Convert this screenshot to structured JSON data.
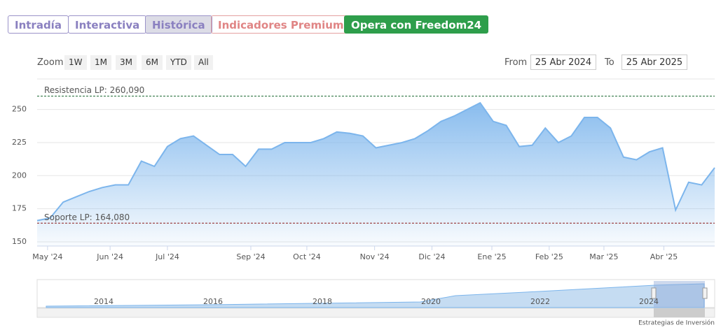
{
  "tabs": [
    "Intradía",
    "Interactiva",
    "Histórica",
    "Indicadores Premium",
    "Opera con Freedom24"
  ],
  "zoom": {
    "label": "Zoom",
    "buttons": [
      "1W",
      "1M",
      "3M",
      "6M",
      "YTD",
      "All"
    ]
  },
  "range": {
    "from_label": "From",
    "from": "25 Abr 2024",
    "to_label": "To",
    "to": "25 Abr 2025"
  },
  "navigator": {
    "years": [
      "2014",
      "2016",
      "2018",
      "2020",
      "2022",
      "2024"
    ]
  },
  "footer": "Estrategias de Inversión",
  "chart_data": {
    "type": "area",
    "color": "#7cb5ec",
    "x": [
      0,
      1,
      2,
      3,
      4,
      5,
      6,
      7,
      8,
      9,
      10,
      11,
      12,
      13,
      14,
      15,
      16,
      17,
      18,
      19,
      20,
      21,
      22,
      23,
      24,
      25,
      26,
      27,
      28,
      29,
      30,
      31,
      32,
      33,
      34,
      35,
      36,
      37,
      38,
      39,
      40,
      41,
      42,
      43,
      44,
      45,
      46,
      47,
      48,
      49,
      50,
      51,
      52
    ],
    "values": [
      166,
      168,
      180,
      184,
      188,
      191,
      193,
      193,
      211,
      207,
      222,
      228,
      230,
      223,
      216,
      216,
      207,
      220,
      220,
      225,
      225,
      225,
      228,
      233,
      232,
      230,
      221,
      223,
      225,
      228,
      234,
      241,
      245,
      250,
      255,
      241,
      238,
      222,
      223,
      236,
      225,
      230,
      244,
      244,
      236,
      214,
      212,
      218,
      221,
      174,
      195,
      193,
      206
    ],
    "xlim": [
      0,
      52
    ],
    "xticks": [
      {
        "value": 0.8,
        "label": "May '24"
      },
      {
        "value": 5.6,
        "label": "Jun '24"
      },
      {
        "value": 10,
        "label": "Jul '24"
      },
      {
        "value": 16.4,
        "label": "Sep '24"
      },
      {
        "value": 20.7,
        "label": "Oct '24"
      },
      {
        "value": 25.9,
        "label": "Nov '24"
      },
      {
        "value": 30.3,
        "label": "Dic '24"
      },
      {
        "value": 34.9,
        "label": "Ene '25"
      },
      {
        "value": 39.3,
        "label": "Feb '25"
      },
      {
        "value": 43.5,
        "label": "Mar '25"
      },
      {
        "value": 48.1,
        "label": "Abr '25"
      }
    ],
    "ylim": [
      146.8,
      272
    ],
    "yticks": [
      150,
      175,
      200,
      225,
      250
    ],
    "grid": true,
    "annotations": [
      {
        "label": "Resistencia LP: 260,090",
        "value": 260.09,
        "color": "#1e6b35"
      },
      {
        "label": "Soporte LP: 164,080",
        "value": 164.08,
        "color": "#8b1a1a"
      }
    ]
  }
}
